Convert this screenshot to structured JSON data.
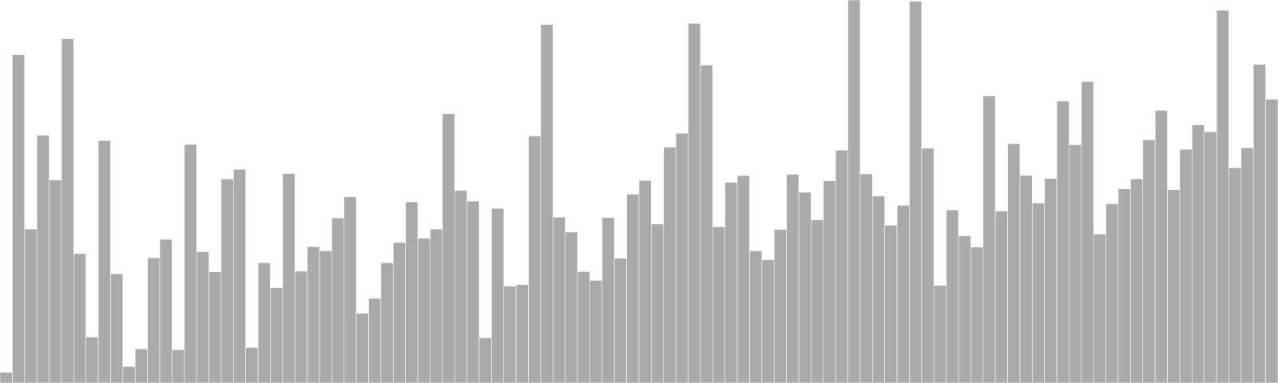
{
  "chart_data": {
    "type": "bar",
    "title": "",
    "xlabel": "",
    "ylabel": "",
    "grid": false,
    "legend": "none",
    "ylim": [
      0,
      100
    ],
    "bar_color": "#aaaaaa",
    "bar_stroke": "#ffffff",
    "values": [
      2.8,
      85.7,
      40.2,
      64.7,
      53.0,
      89.9,
      33.8,
      12.0,
      63.3,
      28.5,
      4.3,
      8.9,
      32.7,
      37.5,
      8.7,
      62.3,
      34.3,
      29.0,
      53.3,
      55.8,
      9.3,
      31.4,
      24.9,
      54.7,
      29.2,
      35.6,
      34.5,
      43.1,
      48.6,
      18.2,
      22.1,
      31.4,
      36.7,
      47.3,
      37.8,
      40.2,
      70.3,
      50.3,
      47.5,
      11.8,
      45.6,
      25.3,
      25.7,
      64.5,
      93.6,
      43.3,
      39.4,
      29.1,
      26.8,
      43.2,
      32.6,
      49.3,
      52.9,
      41.5,
      61.6,
      65.2,
      93.9,
      83.0,
      40.8,
      52.4,
      54.2,
      34.5,
      32.2,
      40.1,
      54.5,
      49.8,
      42.6,
      52.8,
      60.8,
      100.0,
      54.6,
      48.8,
      41.2,
      46.4,
      99.7,
      61.3,
      25.5,
      45.2,
      38.4,
      35.5,
      75.0,
      44.9,
      62.5,
      54.2,
      47.0,
      53.4,
      73.6,
      62.2,
      78.7,
      38.9,
      46.8,
      50.7,
      53.3,
      63.5,
      71.2,
      50.5,
      61.0,
      67.4,
      65.6,
      97.3,
      56.2,
      61.4,
      83.2,
      74.1
    ]
  }
}
